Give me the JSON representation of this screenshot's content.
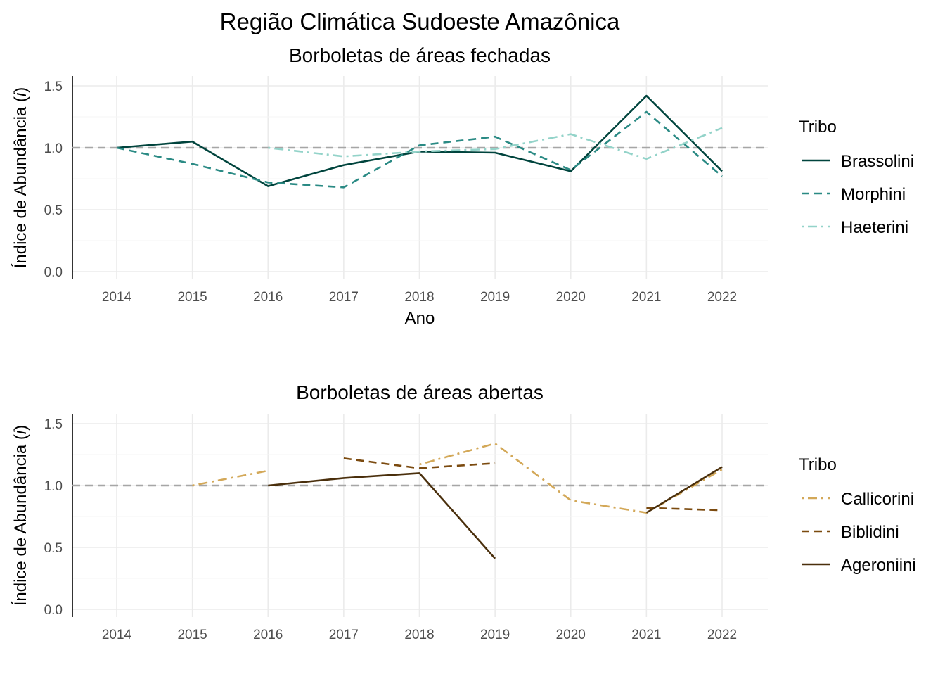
{
  "figure": {
    "title": "Região Climática Sudoeste Amazônica"
  },
  "chart_data": [
    {
      "type": "line",
      "title": "Borboletas de áreas fechadas",
      "xlabel": "Ano",
      "ylabel_prefix": "Índice de Abundância (",
      "ylabel_italic": "i",
      "ylabel_suffix": ")",
      "x_ticks": [
        "2014",
        "2015",
        "2016",
        "2017",
        "2018",
        "2019",
        "2020",
        "2021",
        "2022"
      ],
      "y_ticks": [
        "0.0",
        "0.5",
        "1.0",
        "1.5"
      ],
      "ylim": [
        0,
        1.6
      ],
      "reference_line": 1.0,
      "grid": true,
      "legend_title": "Tribo",
      "legend_position": "right",
      "series": [
        {
          "name": "Brassolini",
          "color": "#00443d",
          "dash": "solid",
          "points": [
            [
              2014,
              1.0
            ],
            [
              2015,
              1.05
            ],
            [
              2016,
              0.69
            ],
            [
              2017,
              0.86
            ],
            [
              2018,
              0.97
            ],
            [
              2019,
              0.96
            ],
            [
              2020,
              0.81
            ],
            [
              2021,
              1.42
            ],
            [
              2022,
              0.81
            ]
          ]
        },
        {
          "name": "Morphini",
          "color": "#2a8a84",
          "dash": "dashed",
          "points": [
            [
              2014,
              1.0
            ],
            [
              2015,
              0.87
            ],
            [
              2016,
              0.72
            ],
            [
              2017,
              0.68
            ],
            [
              2018,
              1.02
            ],
            [
              2019,
              1.09
            ],
            [
              2020,
              0.82
            ],
            [
              2021,
              1.29
            ],
            [
              2022,
              0.77
            ]
          ]
        },
        {
          "name": "Haeterini",
          "color": "#93d3c9",
          "dash": "dotdash",
          "points": [
            [
              2016,
              1.0
            ],
            [
              2017,
              0.93
            ],
            [
              2018,
              0.97
            ],
            [
              2019,
              0.99
            ],
            [
              2020,
              1.11
            ],
            [
              2021,
              0.91
            ],
            [
              2022,
              1.16
            ]
          ]
        }
      ]
    },
    {
      "type": "line",
      "title": "Borboletas de áreas abertas",
      "xlabel": "",
      "ylabel_prefix": "Índice de Abundância (",
      "ylabel_italic": "i",
      "ylabel_suffix": ")",
      "x_ticks": [
        "2014",
        "2015",
        "2016",
        "2017",
        "2018",
        "2019",
        "2020",
        "2021",
        "2022"
      ],
      "y_ticks": [
        "0.0",
        "0.5",
        "1.0",
        "1.5"
      ],
      "ylim": [
        0,
        1.6
      ],
      "reference_line": 1.0,
      "grid": true,
      "legend_title": "Tribo",
      "legend_position": "right",
      "series": [
        {
          "name": "Callicorini",
          "color": "#d3a858",
          "dash": "dotdash",
          "segments": [
            [
              [
                2015,
                1.0
              ],
              [
                2016,
                1.12
              ]
            ],
            [
              [
                2018,
                1.17
              ],
              [
                2019,
                1.34
              ],
              [
                2020,
                0.88
              ],
              [
                2021,
                0.78
              ],
              [
                2022,
                1.13
              ]
            ]
          ]
        },
        {
          "name": "Biblidini",
          "color": "#7b4a0f",
          "dash": "dashed",
          "segments": [
            [
              [
                2017,
                1.22
              ],
              [
                2018,
                1.14
              ],
              [
                2019,
                1.18
              ]
            ],
            [
              [
                2021,
                0.82
              ],
              [
                2022,
                0.8
              ]
            ]
          ]
        },
        {
          "name": "Ageroniini",
          "color": "#4a2f0c",
          "dash": "solid",
          "segments": [
            [
              [
                2016,
                1.0
              ],
              [
                2017,
                1.06
              ],
              [
                2018,
                1.1
              ],
              [
                2019,
                0.41
              ]
            ],
            [
              [
                2021,
                0.78
              ],
              [
                2022,
                1.15
              ]
            ]
          ]
        }
      ]
    }
  ]
}
